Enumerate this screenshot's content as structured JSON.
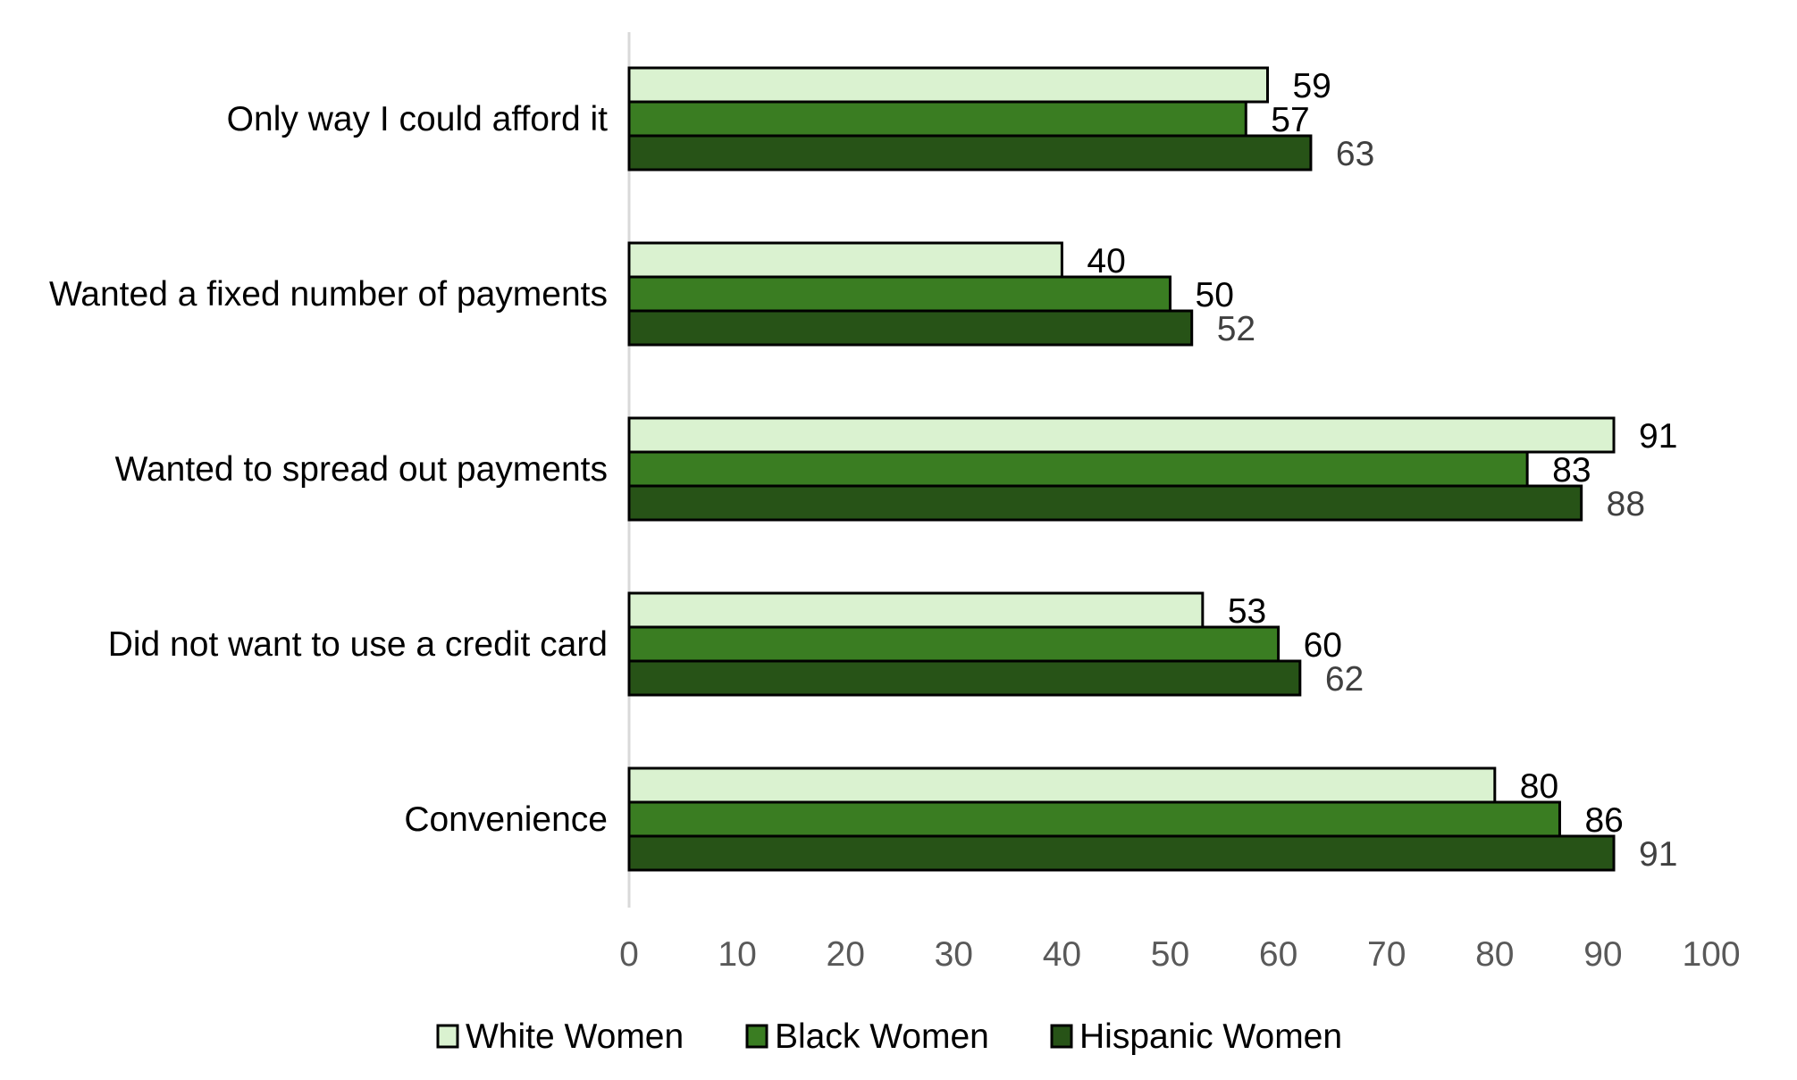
{
  "chart_data": {
    "type": "bar",
    "orientation": "horizontal",
    "categories": [
      "Only way I could afford it",
      "Wanted a fixed number of payments",
      "Wanted to spread out payments",
      "Did not want to use a credit card",
      "Convenience"
    ],
    "series": [
      {
        "name": "White Women",
        "values": [
          59,
          40,
          91,
          53,
          80
        ],
        "color": "#daf2d0"
      },
      {
        "name": "Black Women",
        "values": [
          57,
          50,
          83,
          60,
          86
        ],
        "color": "#3a7d22"
      },
      {
        "name": "Hispanic Women",
        "values": [
          63,
          52,
          88,
          62,
          91
        ],
        "color": "#275317"
      }
    ],
    "xlim": [
      0,
      100
    ],
    "xticks": [
      "0",
      "10",
      "20",
      "30",
      "40",
      "50",
      "60",
      "70",
      "80",
      "90",
      "100"
    ],
    "grid": false,
    "legend_position": "bottom",
    "data_labels": true
  }
}
